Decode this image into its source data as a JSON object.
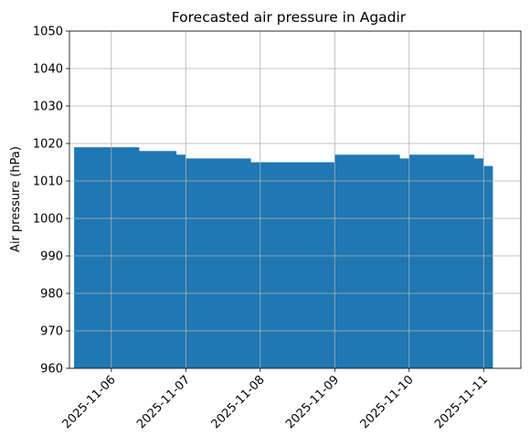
{
  "chart_data": {
    "type": "area",
    "title": "Forecasted air pressure in Agadir",
    "xlabel": "",
    "ylabel": "Air pressure (hPa)",
    "ylim": [
      960,
      1050
    ],
    "yticks": [
      960,
      970,
      980,
      990,
      1000,
      1010,
      1020,
      1030,
      1040,
      1050
    ],
    "xlim": [
      "2025-11-05 10:30",
      "2025-11-11 12:00"
    ],
    "xticks": [
      "2025-11-06",
      "2025-11-07",
      "2025-11-08",
      "2025-11-09",
      "2025-11-10",
      "2025-11-11"
    ],
    "grid": true,
    "color": "#1f77b4",
    "series": [
      {
        "x": [
          "2025-11-05 12:00",
          "2025-11-06 09:00",
          "2025-11-06 21:00",
          "2025-11-07 00:00",
          "2025-11-07 21:00",
          "2025-11-08 00:00",
          "2025-11-09 00:00",
          "2025-11-09 21:00",
          "2025-11-10 00:00",
          "2025-11-10 21:00",
          "2025-11-11 00:00",
          "2025-11-11 03:00"
        ],
        "values": [
          1019,
          1018,
          1017,
          1016,
          1015,
          1015,
          1017,
          1016,
          1017,
          1016,
          1014,
          1014
        ]
      }
    ]
  }
}
